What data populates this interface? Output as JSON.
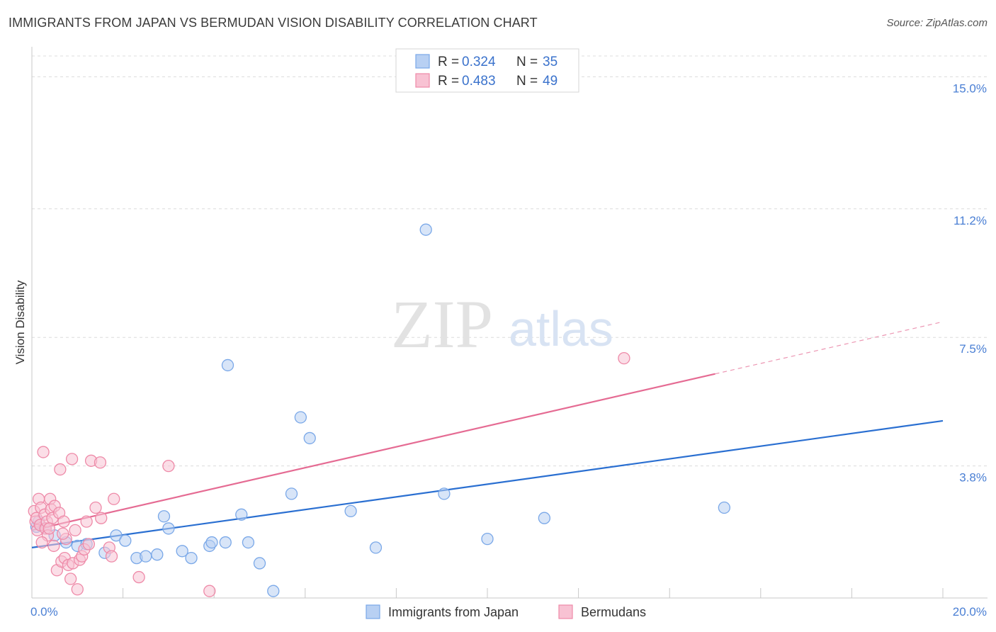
{
  "chart_data": {
    "type": "scatter",
    "title": "IMMIGRANTS FROM JAPAN VS BERMUDAN VISION DISABILITY CORRELATION CHART",
    "source": "Source: ZipAtlas.com",
    "xlabel": "",
    "ylabel": "Vision Disability",
    "xlim": [
      0,
      20
    ],
    "ylim": [
      0,
      15.6
    ],
    "x_tick_labels": [
      "0.0%",
      "20.0%"
    ],
    "y_ticks": [
      {
        "value": 3.8,
        "label": "3.8%"
      },
      {
        "value": 7.5,
        "label": "7.5%"
      },
      {
        "value": 11.2,
        "label": "11.2%"
      },
      {
        "value": 15.0,
        "label": "15.0%"
      }
    ],
    "watermark": {
      "zip": "ZIP",
      "atlas": "atlas"
    },
    "legend": {
      "r_label": "R =",
      "n_label": "N =",
      "entries": [
        {
          "name": "Immigrants from Japan",
          "r": "0.324",
          "n": "35",
          "color": "#7aa8e8",
          "fill": "#b8d0f3"
        },
        {
          "name": "Bermudans",
          "r": "0.483",
          "n": "49",
          "color": "#ee8aa8",
          "fill": "#f8c2d3"
        }
      ]
    },
    "series": [
      {
        "name": "Immigrants from Japan",
        "color": "#7aa8e8",
        "trend": {
          "x0": 0,
          "y0": 1.45,
          "x1": 20,
          "y1": 5.1,
          "line_color": "#2a6fd1",
          "dashed_from": null
        },
        "points": [
          [
            0.1,
            2.05
          ],
          [
            0.15,
            2.2
          ],
          [
            0.3,
            2.0
          ],
          [
            0.5,
            1.8
          ],
          [
            0.75,
            1.6
          ],
          [
            1.0,
            1.5
          ],
          [
            1.2,
            1.55
          ],
          [
            1.6,
            1.3
          ],
          [
            1.85,
            1.8
          ],
          [
            2.05,
            1.65
          ],
          [
            2.3,
            1.15
          ],
          [
            2.5,
            1.2
          ],
          [
            2.75,
            1.25
          ],
          [
            2.9,
            2.35
          ],
          [
            3.0,
            2.0
          ],
          [
            3.3,
            1.35
          ],
          [
            3.5,
            1.15
          ],
          [
            3.9,
            1.5
          ],
          [
            3.95,
            1.6
          ],
          [
            4.25,
            1.6
          ],
          [
            4.6,
            2.4
          ],
          [
            4.75,
            1.6
          ],
          [
            5.0,
            1.0
          ],
          [
            5.3,
            0.2
          ],
          [
            5.7,
            3.0
          ],
          [
            5.9,
            5.2
          ],
          [
            6.1,
            4.6
          ],
          [
            4.3,
            6.7
          ],
          [
            7.0,
            2.5
          ],
          [
            7.55,
            1.45
          ],
          [
            8.65,
            10.6
          ],
          [
            9.05,
            3.0
          ],
          [
            10.0,
            1.7
          ],
          [
            11.25,
            2.3
          ],
          [
            15.2,
            2.6
          ]
        ]
      },
      {
        "name": "Bermudans",
        "color": "#ee8aa8",
        "trend": {
          "x0": 0,
          "y0": 1.95,
          "x1": 20,
          "y1": 7.95,
          "line_color": "#e56b93",
          "dashed_from": 15.0
        },
        "points": [
          [
            0.05,
            2.5
          ],
          [
            0.08,
            2.2
          ],
          [
            0.1,
            2.3
          ],
          [
            0.12,
            1.95
          ],
          [
            0.15,
            2.85
          ],
          [
            0.18,
            2.1
          ],
          [
            0.2,
            2.6
          ],
          [
            0.25,
            4.2
          ],
          [
            0.28,
            2.4
          ],
          [
            0.3,
            2.0
          ],
          [
            0.33,
            2.2
          ],
          [
            0.35,
            1.8
          ],
          [
            0.4,
            2.85
          ],
          [
            0.42,
            2.55
          ],
          [
            0.45,
            2.3
          ],
          [
            0.48,
            1.5
          ],
          [
            0.5,
            2.65
          ],
          [
            0.55,
            0.8
          ],
          [
            0.6,
            2.45
          ],
          [
            0.62,
            3.7
          ],
          [
            0.65,
            1.05
          ],
          [
            0.7,
            2.2
          ],
          [
            0.72,
            1.15
          ],
          [
            0.75,
            1.7
          ],
          [
            0.8,
            0.95
          ],
          [
            0.85,
            0.55
          ],
          [
            0.88,
            4.0
          ],
          [
            0.9,
            1.0
          ],
          [
            0.95,
            1.95
          ],
          [
            1.0,
            0.25
          ],
          [
            1.05,
            1.1
          ],
          [
            1.1,
            1.2
          ],
          [
            1.15,
            1.4
          ],
          [
            1.2,
            2.2
          ],
          [
            1.25,
            1.55
          ],
          [
            1.3,
            3.95
          ],
          [
            1.4,
            2.6
          ],
          [
            1.5,
            3.9
          ],
          [
            1.52,
            2.3
          ],
          [
            1.7,
            1.45
          ],
          [
            1.75,
            1.2
          ],
          [
            1.8,
            2.85
          ],
          [
            2.35,
            0.6
          ],
          [
            3.0,
            3.8
          ],
          [
            3.9,
            0.2
          ],
          [
            13.0,
            6.9
          ],
          [
            0.22,
            1.6
          ],
          [
            0.38,
            2.0
          ],
          [
            0.68,
            1.85
          ]
        ]
      }
    ]
  }
}
